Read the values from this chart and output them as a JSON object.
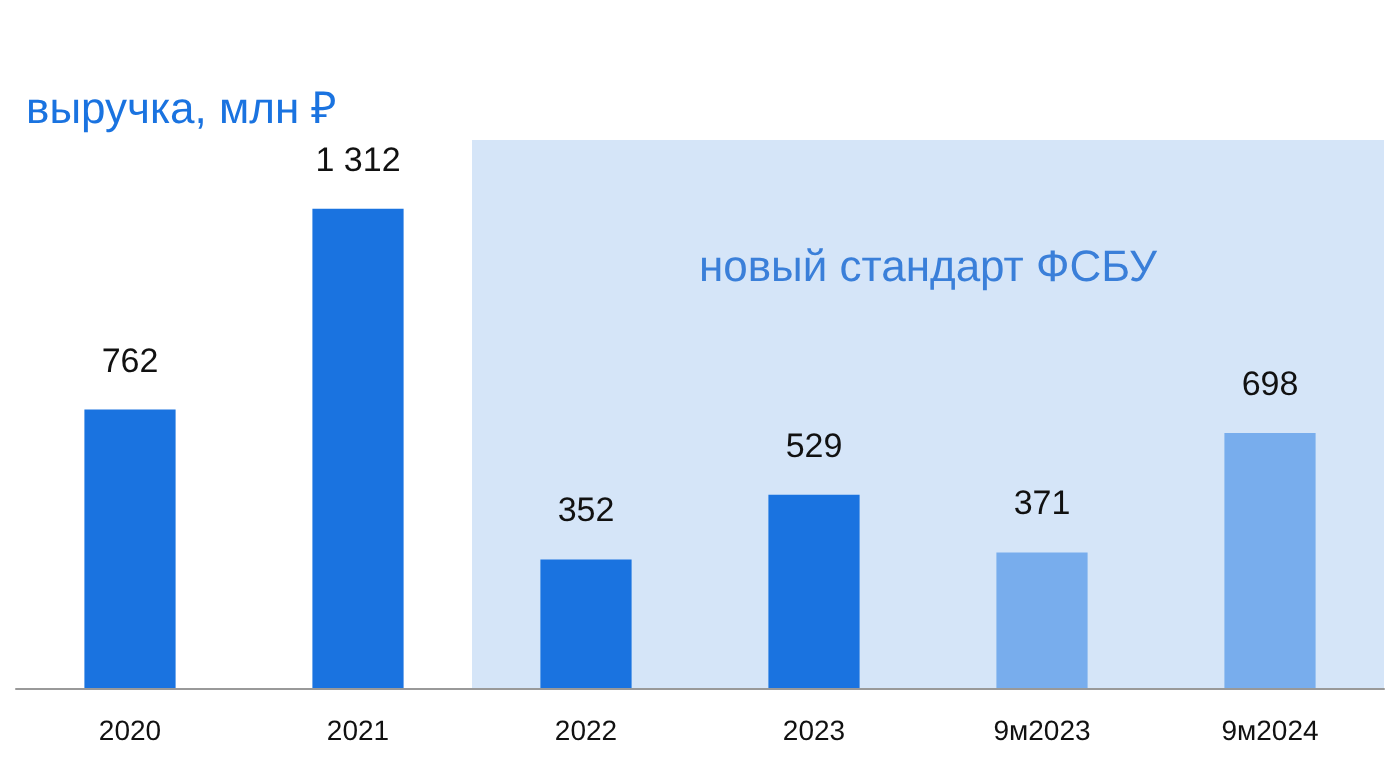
{
  "chart_data": {
    "type": "bar",
    "title": "выручка, млн ₽",
    "categories": [
      "2020",
      "2021",
      "2022",
      "2023",
      "9м2023",
      "9м2024"
    ],
    "values": [
      762,
      1312,
      352,
      529,
      371,
      698
    ],
    "value_labels": [
      "762",
      "1 312",
      "352",
      "529",
      "371",
      "698"
    ],
    "colors": [
      "#1a73e0",
      "#1a73e0",
      "#1a73e0",
      "#1a73e0",
      "#78aded",
      "#78aded"
    ],
    "bands": [
      {
        "axis": "x",
        "from": "2022",
        "to": "9м2024",
        "label": "новый стандарт ФСБУ",
        "color": "#d5e5f8"
      }
    ]
  }
}
